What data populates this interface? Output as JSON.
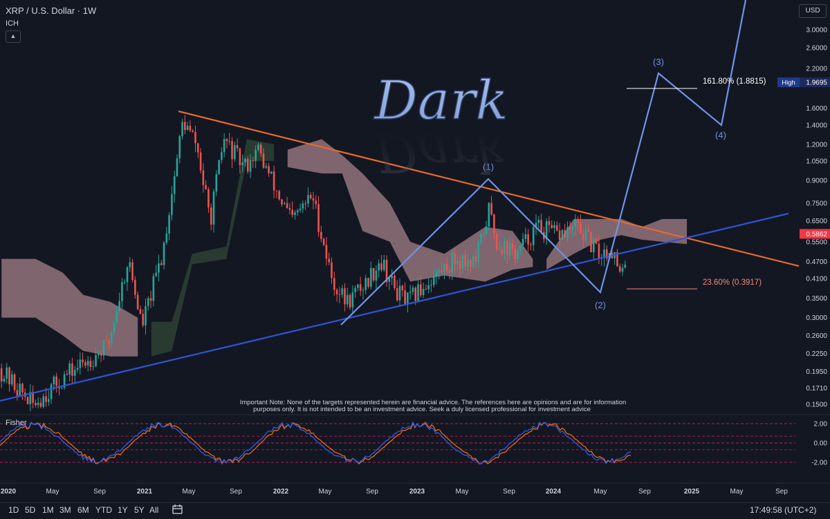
{
  "header": {
    "symbol": "XRP / U.S. Dollar · 1W",
    "indicator": "ICH",
    "collapse_icon": "chevron-up-icon",
    "currency": "USD"
  },
  "watermark": "Dark",
  "note": {
    "line1": "Important Note: None of the targets represented herein are financial advice. The references here are opinions and are for information",
    "line2": "purposes only. It is not intended to be an investment advice. Seek a duly licensed professional for investment advice"
  },
  "fisher_label": "Fisher",
  "colors": {
    "background": "#131722",
    "up_candle": "#26a69a",
    "down_candle": "#ef5350",
    "resistance_line": "#e8692c",
    "support_line": "#2f54d6",
    "wave_path": "#6e95e8",
    "cloud_bear": "#d9a6ad",
    "cloud_bull": "#3d5a3e",
    "fisher_blue": "#2962ff",
    "fisher_orange": "#ff6d00",
    "fisher_level": "#c2185b"
  },
  "chart_data": {
    "type": "candlestick",
    "y_scale": "log",
    "price_axis_ticks": [
      "3.0000",
      "2.6000",
      "2.2000",
      "1.6000",
      "1.4000",
      "1.2000",
      "1.0500",
      "0.9000",
      "0.7500",
      "0.6500",
      "0.5500",
      "0.4700",
      "0.4100",
      "0.3500",
      "0.3000",
      "0.2600",
      "0.2250",
      "0.1950",
      "0.1710",
      "0.1500"
    ],
    "time_axis_ticks": [
      "2020",
      "May",
      "Sep",
      "2021",
      "May",
      "Sep",
      "2022",
      "May",
      "Sep",
      "2023",
      "May",
      "Sep",
      "2024",
      "May",
      "Sep",
      "2025",
      "May",
      "Sep"
    ],
    "current_price": {
      "value": 0.5862,
      "label": "0.5862",
      "color": "#f23645"
    },
    "high_label": {
      "tag": "High",
      "value": "1.9695"
    },
    "fib_levels": [
      {
        "label": "161.80% (1.8815)",
        "value": 1.8815,
        "color": "#ffffff"
      },
      {
        "label": "23.60% (0.3917)",
        "value": 0.3917,
        "color": "#f08a7e"
      }
    ],
    "wave_labels": [
      "(1)",
      "(2)",
      "(3)",
      "(4)"
    ],
    "fisher": {
      "axis_ticks": [
        "2.00",
        "0.00",
        "-2.00"
      ],
      "levels": [
        2.0,
        0.0,
        -2.0
      ]
    },
    "timeframes": [
      "1D",
      "5D",
      "1M",
      "3M",
      "6M",
      "YTD",
      "1Y",
      "5Y",
      "All"
    ],
    "clock": "17:49:58 (UTC+2)"
  }
}
